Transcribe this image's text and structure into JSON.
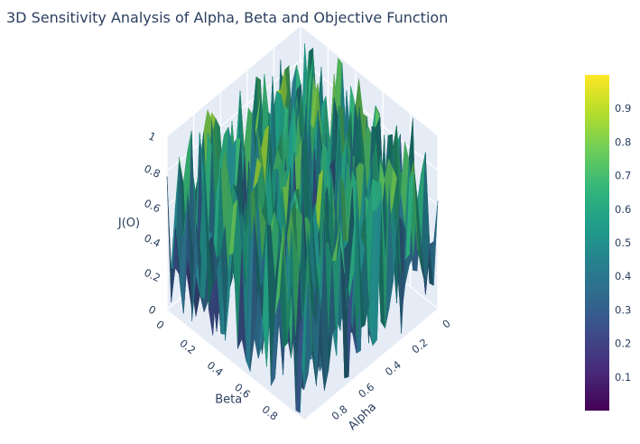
{
  "chart_data": {
    "type": "surface",
    "title": "3D Sensitivity Analysis of Alpha, Beta and Objective Function",
    "x_axis": {
      "label": "Alpha",
      "range": [
        0,
        1
      ],
      "ticks": [
        "0",
        "0.2",
        "0.4",
        "0.6",
        "0.8"
      ]
    },
    "y_axis": {
      "label": "Beta",
      "range": [
        0,
        1
      ],
      "ticks": [
        "0",
        "0.2",
        "0.4",
        "0.6",
        "0.8"
      ]
    },
    "z_axis": {
      "label": "J(O)",
      "range": [
        0,
        1
      ],
      "ticks": [
        "0",
        "0.2",
        "0.4",
        "0.6",
        "0.8",
        "1"
      ]
    },
    "colorscale": "Viridis",
    "colorscale_stops": [
      "#440154",
      "#482878",
      "#3e4989",
      "#31688e",
      "#26828e",
      "#1f9e89",
      "#35b779",
      "#6ece58",
      "#b5de2b",
      "#fde725"
    ],
    "colorbar": {
      "range": [
        0,
        1
      ],
      "ticks": [
        "0.1",
        "0.2",
        "0.3",
        "0.4",
        "0.5",
        "0.6",
        "0.7",
        "0.8",
        "0.9"
      ]
    },
    "surface_description": "random values uniformly distributed in [0,1] over a grid of alpha and beta",
    "grid_size": [
      34,
      34
    ],
    "random_seed": 7,
    "scene_background": "#e5ecf6",
    "grid_color": "#ffffff"
  }
}
